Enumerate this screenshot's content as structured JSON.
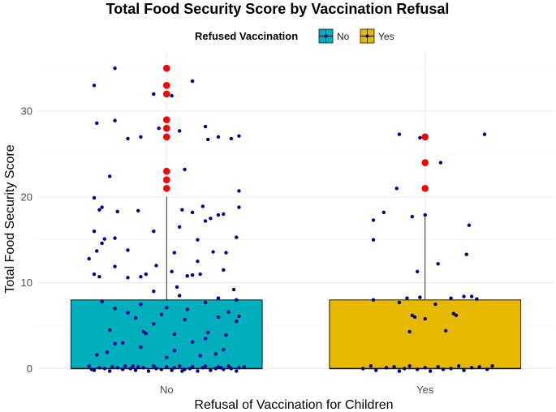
{
  "chart_data": {
    "type": "box",
    "title": "Total Food Security Score by Vaccination Refusal",
    "xlabel": "Refusal of Vaccination for Children",
    "ylabel": "Total Food Security Score",
    "ylim": [
      -1,
      37
    ],
    "yticks": [
      0,
      10,
      20,
      30
    ],
    "grid": true,
    "legend": {
      "title": "Refused Vaccination",
      "position": "top",
      "entries": [
        "No",
        "Yes"
      ]
    },
    "categories": [
      "No",
      "Yes"
    ],
    "colors": {
      "No": "#00AFBB",
      "Yes": "#E7B800",
      "points": "#00008B",
      "outliers": "#FF0000",
      "whisker": "#000000"
    },
    "series": [
      {
        "name": "No",
        "box": {
          "lower": 0,
          "q1": 0,
          "median": 0,
          "q3": 8,
          "upper": 20
        },
        "outliers": [
          35,
          33,
          32,
          29,
          28,
          27,
          23,
          22,
          21
        ],
        "points": [
          [
            -0.28,
            33.0
          ],
          [
            -0.2,
            35.0
          ],
          [
            0.1,
            33.5
          ],
          [
            -0.05,
            32.0
          ],
          [
            0.02,
            31.8
          ],
          [
            -0.27,
            28.6
          ],
          [
            -0.2,
            28.9
          ],
          [
            0.15,
            28.2
          ],
          [
            0.2,
            27.0
          ],
          [
            -0.1,
            27.0
          ],
          [
            -0.15,
            26.8
          ],
          [
            0.16,
            26.7
          ],
          [
            0.25,
            26.8
          ],
          [
            0.28,
            27.1
          ],
          [
            0.05,
            27.7
          ],
          [
            -0.03,
            28.0
          ],
          [
            -0.22,
            22.4
          ],
          [
            0.07,
            23.2
          ],
          [
            0.28,
            20.7
          ],
          [
            -0.28,
            19.9
          ],
          [
            -0.25,
            18.8
          ],
          [
            -0.26,
            18.5
          ],
          [
            -0.19,
            18.3
          ],
          [
            -0.11,
            18.4
          ],
          [
            0.06,
            18.5
          ],
          [
            0.1,
            18.2
          ],
          [
            0.14,
            18.9
          ],
          [
            0.2,
            17.9
          ],
          [
            0.28,
            18.8
          ],
          [
            0.22,
            18.0
          ],
          [
            -0.05,
            16.0
          ],
          [
            0.05,
            16.5
          ],
          [
            0.15,
            17.2
          ],
          [
            0.17,
            17.5
          ],
          [
            -0.28,
            16.0
          ],
          [
            -0.24,
            15.1
          ],
          [
            -0.2,
            15.2
          ],
          [
            0.12,
            15.0
          ],
          [
            0.27,
            15.3
          ],
          [
            -0.25,
            14.6
          ],
          [
            -0.27,
            13.7
          ],
          [
            -0.15,
            13.8
          ],
          [
            0.03,
            13.5
          ],
          [
            -0.3,
            12.8
          ],
          [
            0.18,
            13.6
          ],
          [
            0.23,
            13.5
          ],
          [
            0.12,
            12.5
          ],
          [
            -0.04,
            12.0
          ],
          [
            0.02,
            11.3
          ],
          [
            -0.08,
            11.0
          ],
          [
            -0.28,
            11.0
          ],
          [
            -0.26,
            10.7
          ],
          [
            -0.2,
            11.9
          ],
          [
            -0.15,
            10.6
          ],
          [
            -0.1,
            10.7
          ],
          [
            0.08,
            10.8
          ],
          [
            0.1,
            10.9
          ],
          [
            0.13,
            11.0
          ],
          [
            0.22,
            11.5
          ],
          [
            -0.05,
            9.0
          ],
          [
            0.04,
            9.5
          ],
          [
            0.26,
            9.2
          ],
          [
            0.05,
            8.5
          ],
          [
            0.2,
            8.2
          ],
          [
            0.27,
            8.0
          ],
          [
            -0.25,
            7.8
          ],
          [
            -0.1,
            7.5
          ],
          [
            0.15,
            7.7
          ],
          [
            -0.2,
            7.0
          ],
          [
            0.0,
            7.1
          ],
          [
            0.08,
            6.9
          ],
          [
            -0.15,
            6.5
          ],
          [
            0.24,
            6.6
          ],
          [
            -0.02,
            6.3
          ],
          [
            0.2,
            6.0
          ],
          [
            0.28,
            6.1
          ],
          [
            0.27,
            5.5
          ],
          [
            -0.12,
            5.9
          ],
          [
            0.07,
            5.7
          ],
          [
            -0.05,
            5.2
          ],
          [
            -0.22,
            4.5
          ],
          [
            -0.08,
            4.1
          ],
          [
            -0.09,
            4.3
          ],
          [
            0.03,
            4.0
          ],
          [
            0.16,
            4.2
          ],
          [
            0.23,
            3.9
          ],
          [
            -0.17,
            3.0
          ],
          [
            -0.2,
            2.9
          ],
          [
            0.1,
            3.1
          ],
          [
            0.15,
            3.5
          ],
          [
            -0.1,
            2.5
          ],
          [
            0.03,
            2.1
          ],
          [
            0.22,
            2.2
          ],
          [
            -0.27,
            1.6
          ],
          [
            -0.23,
            1.9
          ],
          [
            0.13,
            1.5
          ],
          [
            0.0,
            1.3
          ],
          [
            0.19,
            1.7
          ],
          [
            -0.3,
            0.3
          ],
          [
            -0.28,
            -0.2
          ],
          [
            -0.26,
            0.1
          ],
          [
            -0.24,
            0.0
          ],
          [
            -0.22,
            -0.3
          ],
          [
            -0.21,
            0.2
          ],
          [
            -0.19,
            0.1
          ],
          [
            -0.17,
            -0.1
          ],
          [
            -0.16,
            0.3
          ],
          [
            -0.14,
            0.0
          ],
          [
            -0.12,
            -0.2
          ],
          [
            -0.11,
            0.2
          ],
          [
            -0.09,
            0.1
          ],
          [
            -0.07,
            -0.3
          ],
          [
            -0.05,
            0.3
          ],
          [
            -0.04,
            0.0
          ],
          [
            -0.02,
            -0.1
          ],
          [
            0.0,
            0.2
          ],
          [
            0.02,
            -0.2
          ],
          [
            0.03,
            0.1
          ],
          [
            0.05,
            0.3
          ],
          [
            0.07,
            -0.1
          ],
          [
            0.09,
            0.0
          ],
          [
            0.1,
            0.2
          ],
          [
            0.12,
            -0.3
          ],
          [
            0.14,
            0.1
          ],
          [
            0.15,
            0.3
          ],
          [
            0.17,
            -0.2
          ],
          [
            0.19,
            0.0
          ],
          [
            0.2,
            0.2
          ],
          [
            0.22,
            -0.1
          ],
          [
            0.24,
            0.3
          ],
          [
            0.25,
            0.0
          ],
          [
            0.27,
            -0.3
          ],
          [
            0.28,
            0.1
          ],
          [
            0.3,
            0.2
          ],
          [
            -0.29,
            -0.1
          ],
          [
            -0.13,
            0.3
          ],
          [
            0.06,
            -0.3
          ],
          [
            0.21,
            0.1
          ]
        ]
      },
      {
        "name": "Yes",
        "box": {
          "lower": 0,
          "q1": 0,
          "median": 0,
          "q3": 8,
          "upper": 18
        },
        "outliers": [
          27,
          24,
          21
        ],
        "points": [
          [
            -0.1,
            27.3
          ],
          [
            -0.02,
            26.9
          ],
          [
            0.23,
            27.3
          ],
          [
            0.06,
            24.0
          ],
          [
            -0.11,
            21.0
          ],
          [
            0.0,
            17.9
          ],
          [
            -0.16,
            18.2
          ],
          [
            -0.05,
            17.7
          ],
          [
            -0.2,
            17.3
          ],
          [
            0.17,
            16.7
          ],
          [
            -0.2,
            15.0
          ],
          [
            0.16,
            13.3
          ],
          [
            0.05,
            12.2
          ],
          [
            -0.03,
            11.3
          ],
          [
            -0.2,
            8.0
          ],
          [
            0.1,
            8.2
          ],
          [
            0.18,
            8.4
          ],
          [
            0.2,
            8.1
          ],
          [
            -0.07,
            8.2
          ],
          [
            -0.02,
            8.3
          ],
          [
            -0.1,
            7.7
          ],
          [
            0.15,
            8.4
          ],
          [
            0.04,
            7.5
          ],
          [
            -0.05,
            6.2
          ],
          [
            -0.04,
            6.0
          ],
          [
            0.11,
            6.4
          ],
          [
            0.12,
            6.2
          ],
          [
            -0.06,
            4.3
          ],
          [
            0.08,
            4.4
          ],
          [
            0.0,
            5.8
          ],
          [
            -0.21,
            0.3
          ],
          [
            -0.19,
            -0.2
          ],
          [
            -0.15,
            0.1
          ],
          [
            -0.12,
            0.2
          ],
          [
            -0.1,
            -0.3
          ],
          [
            -0.08,
            0.0
          ],
          [
            -0.06,
            0.3
          ],
          [
            -0.03,
            -0.1
          ],
          [
            0.0,
            0.1
          ],
          [
            0.02,
            -0.3
          ],
          [
            0.05,
            0.2
          ],
          [
            0.07,
            -0.1
          ],
          [
            0.1,
            0.0
          ],
          [
            0.13,
            0.3
          ],
          [
            0.15,
            -0.2
          ],
          [
            0.18,
            0.1
          ],
          [
            0.21,
            0.2
          ],
          [
            0.24,
            -0.1
          ],
          [
            0.26,
            0.3
          ],
          [
            -0.24,
            0.0
          ]
        ]
      }
    ]
  }
}
